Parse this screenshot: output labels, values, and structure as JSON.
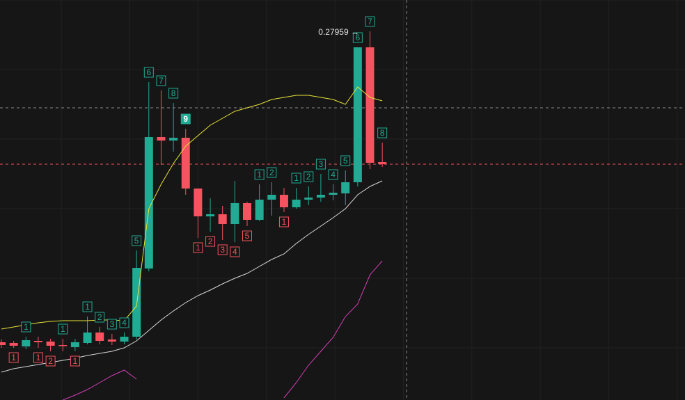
{
  "chart_data": {
    "type": "candlestick",
    "ylim": [
      0.1275,
      0.3
    ],
    "up_color": "#22ab94",
    "down_color": "#f7525f",
    "open": [
      0.1524,
      0.1521,
      0.1506,
      0.153,
      0.1527,
      0.1512,
      0.1503,
      0.1521,
      0.1566,
      0.1536,
      0.1527,
      0.1548,
      0.1842,
      0.2409,
      0.2394,
      0.2406,
      0.2187,
      0.2067,
      0.2076,
      0.2034,
      0.2124,
      0.2052,
      0.2139,
      0.216,
      0.2106,
      0.2139,
      0.2148,
      0.216,
      0.2166,
      0.2214,
      0.27959,
      0.2301
    ],
    "close": [
      0.1512,
      0.1509,
      0.1533,
      0.1524,
      0.1509,
      0.1509,
      0.1524,
      0.1566,
      0.153,
      0.1527,
      0.1548,
      0.1845,
      0.2409,
      0.2394,
      0.2406,
      0.2187,
      0.2067,
      0.2076,
      0.2034,
      0.2124,
      0.2052,
      0.2139,
      0.216,
      0.2106,
      0.2139,
      0.2148,
      0.216,
      0.2169,
      0.2214,
      0.27959,
      0.2298,
      0.2292
    ],
    "high": [
      0.1536,
      0.153,
      0.1548,
      0.1548,
      0.1539,
      0.1539,
      0.1539,
      0.1635,
      0.159,
      0.156,
      0.1566,
      0.192,
      0.2646,
      0.261,
      0.2556,
      0.2445,
      0.2187,
      0.2145,
      0.2112,
      0.222,
      0.213,
      0.2205,
      0.2214,
      0.219,
      0.219,
      0.2196,
      0.225,
      0.2205,
      0.2265,
      0.27959,
      0.2865,
      0.2385
    ],
    "low": [
      0.15,
      0.15,
      0.1494,
      0.15,
      0.1485,
      0.1485,
      0.1485,
      0.1515,
      0.1515,
      0.1512,
      0.1515,
      0.1536,
      0.183,
      0.2289,
      0.2346,
      0.216,
      0.1974,
      0.2001,
      0.1965,
      0.1956,
      0.2025,
      0.2046,
      0.207,
      0.2085,
      0.21,
      0.2115,
      0.213,
      0.2136,
      0.2115,
      0.2196,
      0.2271,
      0.228
    ],
    "series": [
      {
        "color": "#e8e337",
        "values": [
          0.1581,
          0.159,
          0.1599,
          0.1608,
          0.1614,
          0.1617,
          0.1617,
          0.1617,
          0.162,
          0.162,
          0.1617,
          0.168,
          0.21,
          0.2205,
          0.2295,
          0.237,
          0.2415,
          0.246,
          0.249,
          0.252,
          0.2535,
          0.255,
          0.2571,
          0.258,
          0.2589,
          0.2589,
          0.258,
          0.2571,
          0.255,
          0.2625,
          0.258,
          0.2565
        ]
      },
      {
        "color": "#d8d8d8",
        "values": [
          0.1395,
          0.141,
          0.1419,
          0.1428,
          0.1437,
          0.1446,
          0.1455,
          0.1467,
          0.1476,
          0.1485,
          0.15,
          0.153,
          0.1575,
          0.162,
          0.1659,
          0.1695,
          0.1725,
          0.1749,
          0.1776,
          0.18,
          0.1821,
          0.1851,
          0.1881,
          0.1905,
          0.195,
          0.1989,
          0.2025,
          0.2061,
          0.21,
          0.216,
          0.2196,
          0.222
        ]
      },
      {
        "color": "#d23fb4",
        "values": [
          null,
          null,
          null,
          null,
          null,
          0.1275,
          0.1296,
          0.132,
          0.135,
          0.138,
          0.1404,
          0.1365,
          null,
          null,
          null,
          null,
          null,
          null,
          null,
          null,
          null,
          null,
          null,
          0.1284,
          0.135,
          0.1425,
          0.1485,
          0.1545,
          0.1635,
          0.1689,
          0.1815,
          0.1875
        ]
      }
    ],
    "setup_up": [
      null,
      null,
      1,
      null,
      null,
      1,
      null,
      1,
      2,
      3,
      4,
      5,
      6,
      7,
      8,
      9,
      null,
      null,
      null,
      null,
      null,
      1,
      2,
      null,
      1,
      2,
      3,
      4,
      5,
      6,
      7,
      8
    ],
    "setup_down": [
      null,
      1,
      null,
      1,
      2,
      null,
      1,
      null,
      null,
      null,
      null,
      null,
      null,
      null,
      null,
      null,
      1,
      2,
      3,
      4,
      5,
      null,
      null,
      1,
      null,
      null,
      null,
      null,
      null,
      null,
      null,
      null
    ],
    "price_label": "0.27959 →"
  }
}
